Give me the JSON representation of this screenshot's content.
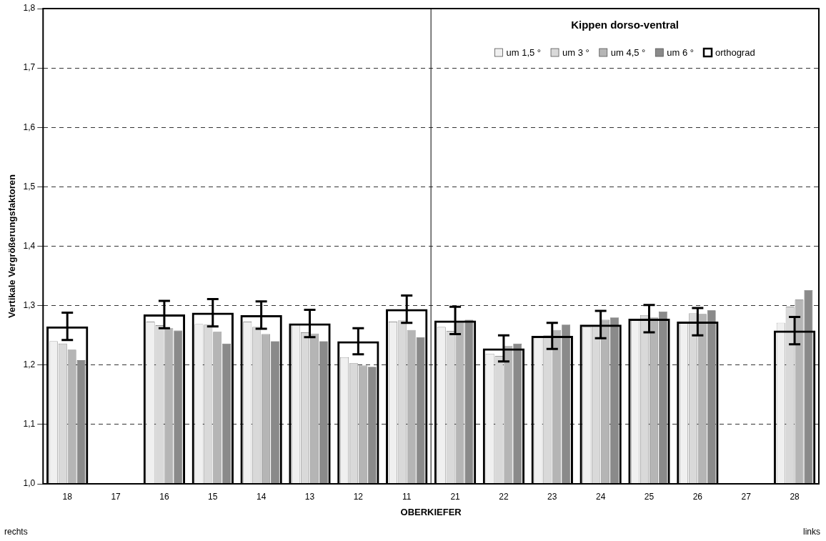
{
  "chart_data": {
    "type": "bar",
    "title": "Kippen dorso-ventral",
    "x_label": "OBERKIEFER",
    "y_label": "Vertikale Vergrößerungsfaktoren",
    "annotations": [
      "rechts",
      "links"
    ],
    "categories": [
      "18",
      "17",
      "16",
      "15",
      "14",
      "13",
      "12",
      "11",
      "21",
      "22",
      "23",
      "24",
      "25",
      "26",
      "27",
      "28"
    ],
    "series": [
      {
        "name": "um 1,5 °",
        "color": "#f0f0f0",
        "values": [
          1.24,
          null,
          1.273,
          1.269,
          1.273,
          1.268,
          1.213,
          1.273,
          1.264,
          1.219,
          1.249,
          1.264,
          1.275,
          1.272,
          null,
          1.271
        ]
      },
      {
        "name": "um 3 °",
        "color": "#d9d9d9",
        "values": [
          1.236,
          null,
          1.267,
          1.268,
          1.264,
          1.255,
          1.203,
          1.275,
          1.257,
          1.215,
          1.25,
          1.265,
          1.284,
          1.287,
          null,
          1.298
        ]
      },
      {
        "name": "um 4,5 °",
        "color": "#b5b5b5",
        "values": [
          1.226,
          null,
          1.262,
          1.256,
          1.252,
          1.253,
          1.199,
          1.259,
          1.274,
          1.232,
          1.259,
          1.276,
          1.28,
          1.286,
          null,
          1.31
        ]
      },
      {
        "name": "um 6 °",
        "color": "#8a8a8a",
        "values": [
          1.208,
          null,
          1.258,
          1.236,
          1.24,
          1.24,
          1.197,
          1.247,
          1.276,
          1.236,
          1.268,
          1.28,
          1.29,
          1.292,
          null,
          1.326
        ]
      },
      {
        "name": "orthograd",
        "color": "#000000",
        "values": [
          1.265,
          null,
          1.285,
          1.288,
          1.284,
          1.27,
          1.24,
          1.294,
          1.275,
          1.228,
          1.249,
          1.268,
          1.278,
          1.273,
          null,
          1.258
        ],
        "errors": [
          0.023,
          null,
          0.023,
          0.023,
          0.023,
          0.023,
          0.022,
          0.023,
          0.023,
          0.022,
          0.022,
          0.023,
          0.023,
          0.023,
          null,
          0.023
        ]
      }
    ],
    "ylim": [
      1.0,
      1.8
    ],
    "yticks": [
      {
        "value": 1.0,
        "label": "1,0"
      },
      {
        "value": 1.1,
        "label": "1,1"
      },
      {
        "value": 1.2,
        "label": "1,2"
      },
      {
        "value": 1.3,
        "label": "1,3"
      },
      {
        "value": 1.4,
        "label": "1,4"
      },
      {
        "value": 1.5,
        "label": "1,5"
      },
      {
        "value": 1.6,
        "label": "1,6"
      },
      {
        "value": 1.7,
        "label": "1,7"
      },
      {
        "value": 1.8,
        "label": "1,8"
      }
    ],
    "grid": true,
    "legend": "upper right"
  }
}
